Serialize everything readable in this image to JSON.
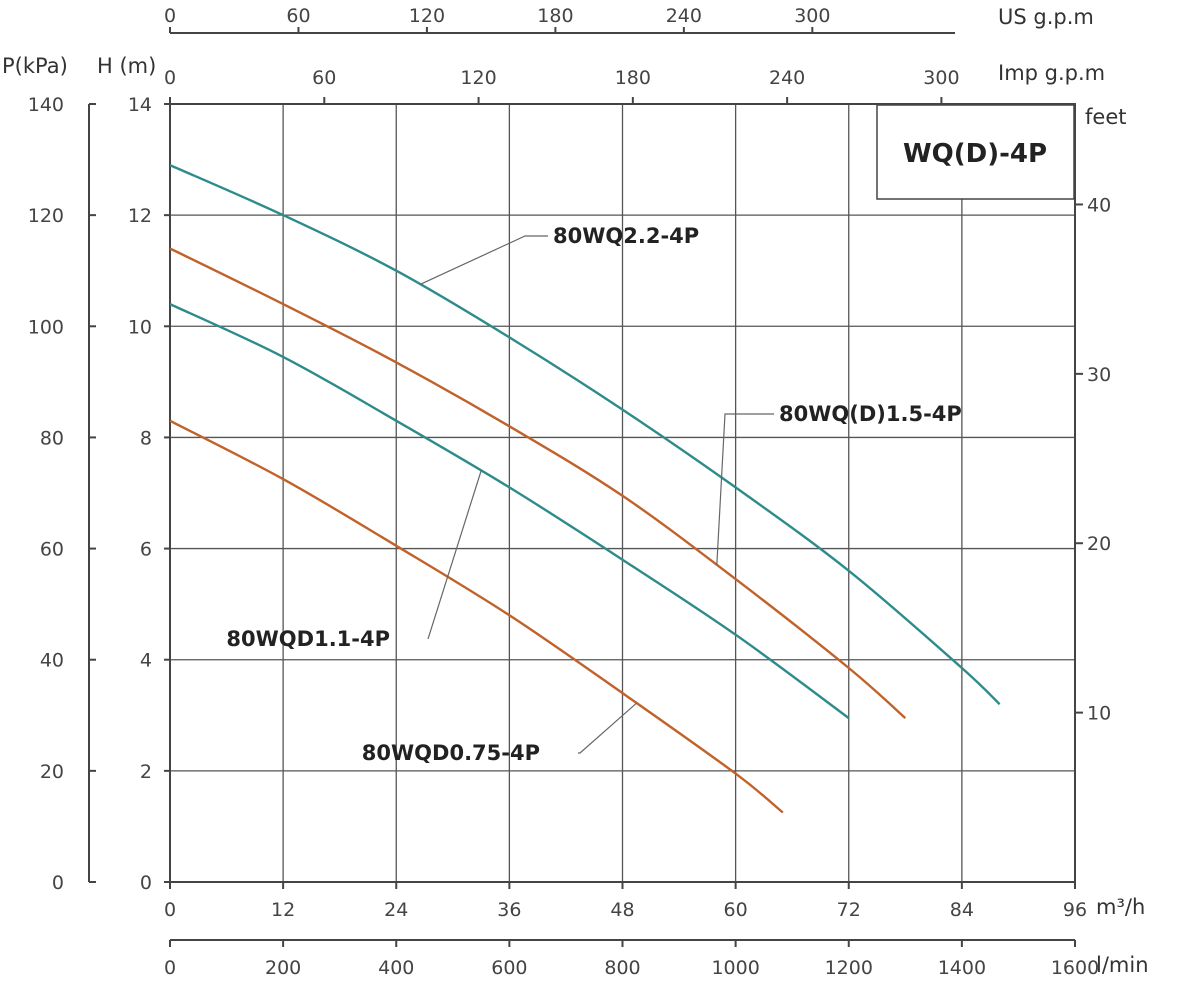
{
  "chart_data": {
    "type": "line",
    "title": "WQ(D)-4P",
    "xlabel": "m³/h",
    "ylabel": "H (m)",
    "xlim": [
      0,
      96
    ],
    "ylim": [
      0,
      14
    ],
    "x_ticks": [
      0,
      12,
      24,
      36,
      48,
      60,
      72,
      84,
      96
    ],
    "y_ticks": [
      0,
      2,
      4,
      6,
      8,
      10,
      12,
      14
    ],
    "pressure_axis": {
      "label": "P(kPa)",
      "ticks": [
        0,
        20,
        40,
        60,
        80,
        100,
        120,
        140
      ]
    },
    "feet_axis": {
      "label": "feet",
      "ticks": [
        10,
        20,
        30,
        40
      ]
    },
    "lmin_axis": {
      "label": "l/min",
      "ticks": [
        0,
        200,
        400,
        600,
        800,
        1000,
        1200,
        1400,
        1600
      ]
    },
    "us_gpm_axis": {
      "label": "US g.p.m",
      "ticks": [
        0,
        60,
        120,
        180,
        240,
        300
      ]
    },
    "imp_gpm_axis": {
      "label": "Imp g.p.m",
      "ticks": [
        0,
        60,
        120,
        180,
        240,
        300
      ]
    },
    "grid": true,
    "series": [
      {
        "name": "80WQ2.2-4P",
        "color": "#2e8b8b",
        "points": [
          [
            0,
            12.9
          ],
          [
            12,
            12.0
          ],
          [
            24,
            11.0
          ],
          [
            36,
            9.8
          ],
          [
            48,
            8.5
          ],
          [
            60,
            7.1
          ],
          [
            72,
            5.6
          ],
          [
            84,
            3.85
          ],
          [
            88,
            3.2
          ]
        ]
      },
      {
        "name": "80WQ(D)1.5-4P",
        "color": "#c0622a",
        "points": [
          [
            0,
            11.4
          ],
          [
            12,
            10.4
          ],
          [
            24,
            9.35
          ],
          [
            36,
            8.2
          ],
          [
            48,
            6.95
          ],
          [
            60,
            5.45
          ],
          [
            72,
            3.85
          ],
          [
            78,
            2.95
          ]
        ]
      },
      {
        "name": "80WQD1.1-4P",
        "color": "#2e8b8b",
        "points": [
          [
            0,
            10.4
          ],
          [
            12,
            9.45
          ],
          [
            24,
            8.3
          ],
          [
            36,
            7.1
          ],
          [
            48,
            5.8
          ],
          [
            60,
            4.45
          ],
          [
            72,
            2.95
          ]
        ]
      },
      {
        "name": "80WQD0.75-4P",
        "color": "#c0622a",
        "points": [
          [
            0,
            8.3
          ],
          [
            12,
            7.25
          ],
          [
            24,
            6.05
          ],
          [
            36,
            4.8
          ],
          [
            48,
            3.4
          ],
          [
            60,
            1.95
          ],
          [
            65,
            1.25
          ]
        ]
      }
    ]
  }
}
